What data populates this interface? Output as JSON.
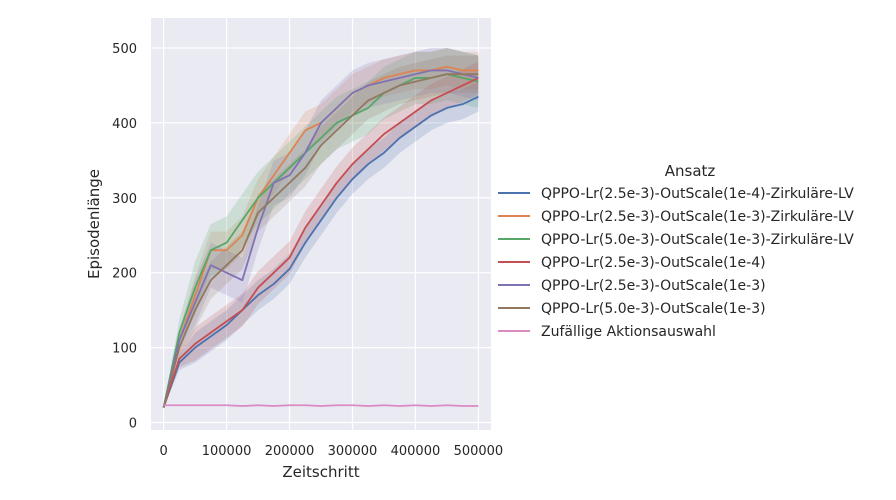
{
  "chart_data": {
    "type": "line",
    "title": "",
    "xlabel": "Zeitschritt",
    "ylabel": "Episodenlänge",
    "xlim": [
      -20000,
      520000
    ],
    "ylim": [
      -10,
      540
    ],
    "xticks": [
      0,
      100000,
      200000,
      300000,
      400000,
      500000
    ],
    "xtick_labels": [
      "0",
      "100000",
      "200000",
      "300000",
      "400000",
      "500000"
    ],
    "yticks": [
      0,
      100,
      200,
      300,
      400,
      500
    ],
    "ytick_labels": [
      "0",
      "100",
      "200",
      "300",
      "400",
      "500"
    ],
    "grid": true,
    "background": "#eaeaf2",
    "legend": {
      "title": "Ansatz",
      "placement": "outside-right"
    },
    "x": [
      0,
      25000,
      50000,
      75000,
      100000,
      125000,
      150000,
      175000,
      200000,
      225000,
      250000,
      275000,
      300000,
      325000,
      350000,
      375000,
      400000,
      425000,
      450000,
      475000,
      500000
    ],
    "series": [
      {
        "name": "QPPO-Lr(2.5e-3)-OutScale(1e-4)-Zirkuläre-LV",
        "color": "#4c72b0",
        "band": 20,
        "values": [
          20,
          80,
          100,
          115,
          130,
          150,
          170,
          185,
          205,
          240,
          270,
          300,
          325,
          345,
          360,
          380,
          395,
          410,
          420,
          425,
          435
        ]
      },
      {
        "name": "QPPO-Lr(2.5e-3)-OutScale(1e-3)-Zirkuläre-LV",
        "color": "#dd8452",
        "band": 25,
        "values": [
          20,
          110,
          170,
          230,
          230,
          250,
          300,
          330,
          360,
          390,
          400,
          420,
          440,
          450,
          460,
          465,
          470,
          470,
          475,
          470,
          470
        ]
      },
      {
        "name": "QPPO-Lr(5.0e-3)-OutScale(1e-3)-Zirkuläre-LV",
        "color": "#55a868",
        "band": 35,
        "values": [
          20,
          120,
          180,
          230,
          240,
          270,
          300,
          320,
          340,
          360,
          380,
          400,
          410,
          420,
          440,
          450,
          460,
          460,
          465,
          460,
          455
        ]
      },
      {
        "name": "QPPO-Lr(2.5e-3)-OutScale(1e-4)",
        "color": "#c44e52",
        "band": 22,
        "values": [
          20,
          85,
          105,
          120,
          135,
          150,
          180,
          200,
          220,
          260,
          290,
          320,
          345,
          365,
          385,
          400,
          415,
          430,
          440,
          450,
          460
        ]
      },
      {
        "name": "QPPO-Lr(2.5e-3)-OutScale(1e-3)",
        "color": "#8172b3",
        "band": 30,
        "values": [
          20,
          110,
          160,
          210,
          200,
          190,
          260,
          320,
          330,
          360,
          400,
          420,
          440,
          450,
          455,
          460,
          465,
          470,
          470,
          465,
          460
        ]
      },
      {
        "name": "QPPO-Lr(5.0e-3)-OutScale(1e-3)",
        "color": "#937860",
        "band": 25,
        "values": [
          20,
          100,
          150,
          190,
          210,
          230,
          280,
          300,
          320,
          340,
          370,
          390,
          410,
          430,
          440,
          450,
          455,
          460,
          465,
          465,
          465
        ]
      },
      {
        "name": "Zufällige Aktionsauswahl",
        "color": "#da8bc3",
        "band": 0,
        "values": [
          23,
          23,
          23,
          23,
          23,
          22,
          23,
          22,
          23,
          23,
          22,
          23,
          23,
          22,
          23,
          22,
          23,
          22,
          23,
          22,
          22
        ]
      }
    ]
  }
}
